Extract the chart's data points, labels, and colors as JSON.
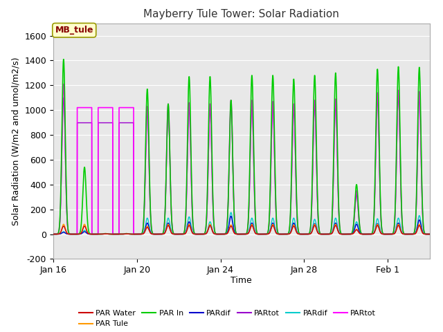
{
  "title": "Mayberry Tule Tower: Solar Radiation",
  "ylabel": "Solar Radiation (W/m2 and umol/m2/s)",
  "xlabel": "Time",
  "ylim": [
    -200,
    1700
  ],
  "yticks": [
    -200,
    0,
    200,
    400,
    600,
    800,
    1000,
    1200,
    1400,
    1600
  ],
  "fig_bg": "#ffffff",
  "plot_bg": "#e8e8e8",
  "annotation_text": "MB_tule",
  "annotation_box_color": "#ffffcc",
  "annotation_border_color": "#999900",
  "series_colors": {
    "PAR_water": "#cc0000",
    "PAR_tule": "#ff9900",
    "PAR_in": "#00cc00",
    "PARdif_blue": "#0000cc",
    "PARtot_purple": "#9900cc",
    "PARdif_cyan": "#00cccc",
    "PARtot_magenta": "#ff00ff"
  },
  "x_start_day": 16,
  "num_days": 19,
  "xtick_labels": [
    "Jan 16",
    "Jan 20",
    "Jan 24",
    "Jan 28",
    "Feb 1"
  ],
  "xtick_positions": [
    16,
    20,
    24,
    28,
    32
  ],
  "par_in_peaks": [
    1410,
    540,
    5,
    5,
    1170,
    1050,
    1270,
    1270,
    1080,
    1280,
    1280,
    1250,
    1280,
    1300,
    400,
    1330,
    1350,
    1345,
    1320
  ],
  "par_tule_peaks": [
    80,
    80,
    2,
    2,
    65,
    80,
    80,
    80,
    75,
    80,
    80,
    75,
    80,
    80,
    40,
    80,
    80,
    80,
    75
  ],
  "par_water_peaks": [
    65,
    65,
    2,
    2,
    55,
    70,
    70,
    70,
    65,
    70,
    70,
    65,
    70,
    70,
    35,
    70,
    70,
    70,
    65
  ],
  "partot_mag_peaks": [
    1210,
    1020,
    1020,
    1020,
    1030,
    1050,
    1060,
    1050,
    1080,
    1080,
    1070,
    1050,
    1080,
    1090,
    350,
    1140,
    1160,
    1150,
    1110
  ],
  "partot_purp_peaks": [
    1100,
    900,
    900,
    900,
    990,
    1010,
    1020,
    1010,
    1040,
    1040,
    1030,
    1010,
    1040,
    1050,
    320,
    1100,
    1120,
    1110,
    1070
  ],
  "pardif_cyan_peaks": [
    20,
    30,
    2,
    2,
    130,
    130,
    140,
    100,
    175,
    130,
    130,
    130,
    120,
    130,
    100,
    125,
    130,
    150,
    130
  ],
  "pardif_blue_peaks": [
    15,
    20,
    2,
    2,
    90,
    90,
    100,
    70,
    145,
    90,
    90,
    90,
    85,
    90,
    80,
    85,
    90,
    115,
    90
  ]
}
